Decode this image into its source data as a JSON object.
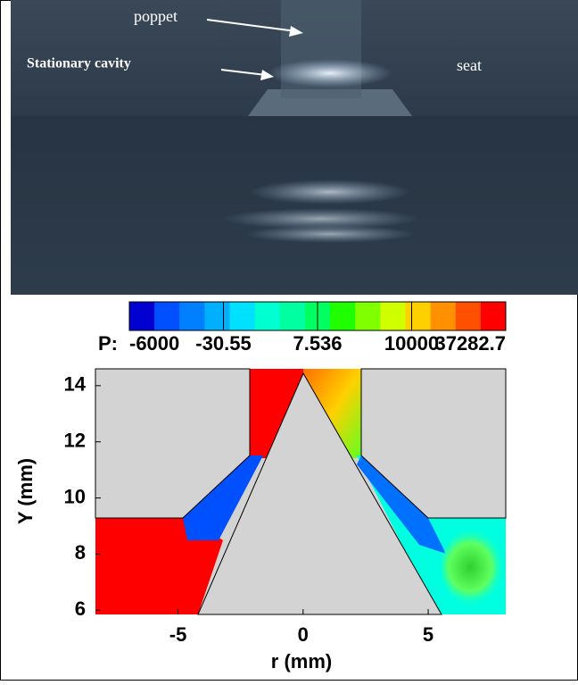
{
  "photo": {
    "annotations": [
      "poppet",
      "Stationary cavity",
      "seat"
    ]
  },
  "colorbar": {
    "prefix": "P:",
    "colors": [
      "#0000d0",
      "#0050ff",
      "#0080ff",
      "#00b0ff",
      "#00e0ff",
      "#00ffd0",
      "#00ffa0",
      "#00ff60",
      "#20ff00",
      "#80ff00",
      "#d0ff00",
      "#ffd000",
      "#ff9000",
      "#ff5000",
      "#ff0000"
    ],
    "ticks": [
      -6000,
      -30.55,
      7.536,
      10000,
      37282.7
    ]
  },
  "plot": {
    "xlabel": "r (mm)",
    "ylabel": "Y (mm)",
    "xlim": [
      -8.3,
      8.1
    ],
    "ylim": [
      5.85,
      14.6
    ],
    "xticks": [
      -5,
      0,
      5
    ],
    "yticks": [
      6,
      8,
      10,
      12,
      14
    ]
  }
}
